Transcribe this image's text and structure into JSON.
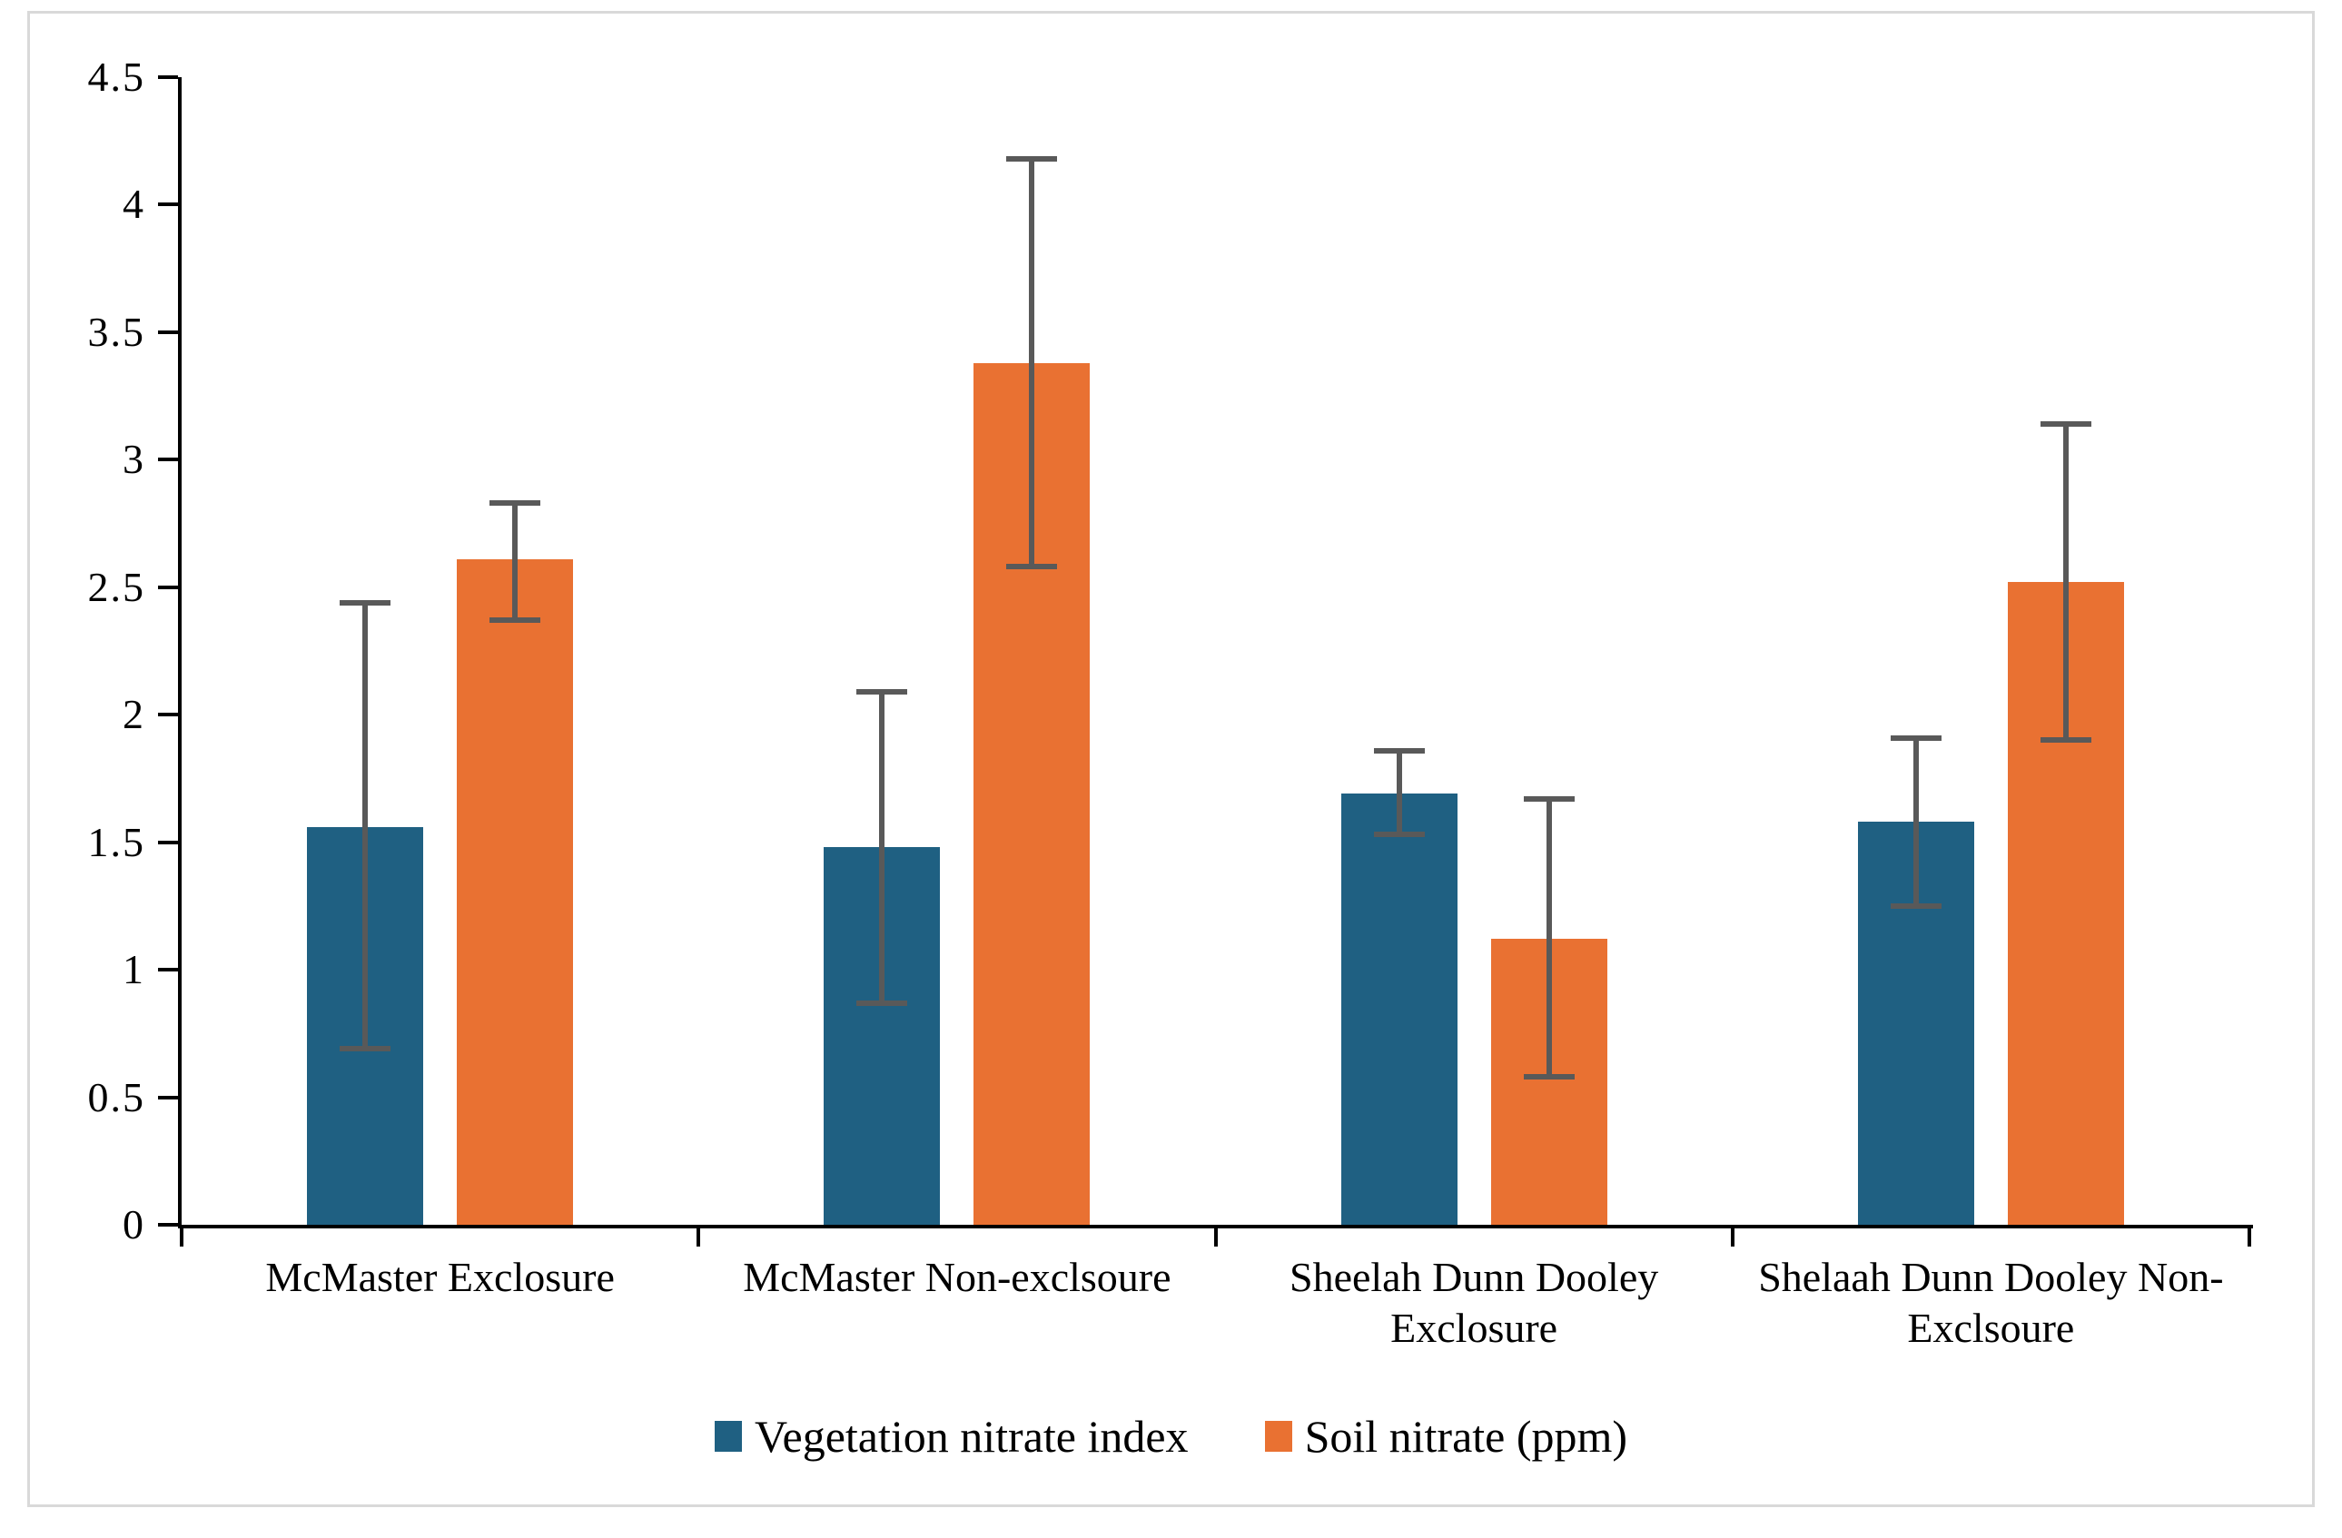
{
  "chart_data": {
    "type": "bar",
    "title": "",
    "xlabel": "",
    "ylabel": "",
    "categories": [
      "McMaster Exclosure",
      "McMaster Non-exclsoure",
      "Sheelah Dunn Dooley Exclosure",
      "Shelaah Dunn Dooley Non-Exclsoure"
    ],
    "category_lines": [
      [
        "McMaster Exclosure"
      ],
      [
        "McMaster Non-exclsoure"
      ],
      [
        "Sheelah Dunn Dooley",
        "Exclosure"
      ],
      [
        "Shelaah Dunn Dooley Non-",
        "Exclsoure"
      ]
    ],
    "series": [
      {
        "name": "Vegetation nitrate index",
        "color": "#1F6082",
        "values": [
          1.56,
          1.48,
          1.69,
          1.58
        ],
        "error_low": [
          0.69,
          0.87,
          1.53,
          1.25
        ],
        "error_high": [
          2.44,
          2.09,
          1.86,
          1.91
        ]
      },
      {
        "name": "Soil nitrate (ppm)",
        "color": "#E97132",
        "values": [
          2.61,
          3.38,
          1.12,
          2.52
        ],
        "error_low": [
          2.37,
          2.58,
          0.58,
          1.9
        ],
        "error_high": [
          2.83,
          4.18,
          1.67,
          3.14
        ]
      }
    ],
    "ylim": [
      0,
      4.5
    ],
    "ytick_step": 0.5,
    "ytick_labels": [
      "0",
      "0.5",
      "1",
      "1.5",
      "2",
      "2.5",
      "3",
      "3.5",
      "4",
      "4.5"
    ],
    "grid": false,
    "legend_position": "bottom",
    "error_bar_color": "#595959",
    "axis_color": "#000000",
    "frame_color": "#d9d9d9"
  }
}
